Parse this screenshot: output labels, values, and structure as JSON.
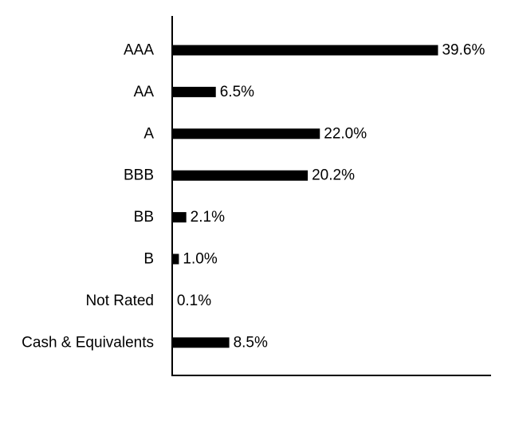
{
  "chart_data": {
    "type": "bar",
    "orientation": "horizontal",
    "categories": [
      "AAA",
      "AA",
      "A",
      "BBB",
      "BB",
      "B",
      "Not Rated",
      "Cash & Equivalents"
    ],
    "values": [
      39.6,
      6.5,
      22.0,
      20.2,
      2.1,
      1.0,
      0.1,
      8.5
    ],
    "value_labels": [
      "39.6%",
      "6.5%",
      "22.0%",
      "20.2%",
      "2.1%",
      "1.0%",
      "0.1%",
      "8.5%"
    ],
    "xlim": [
      0,
      47.5
    ],
    "bar_color": "#000000",
    "grid": false,
    "legend": "none"
  }
}
